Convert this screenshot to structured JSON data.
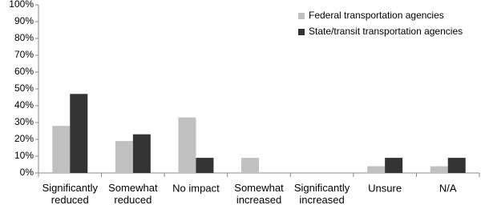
{
  "chart_data": {
    "type": "bar",
    "categories": [
      "Significantly\nreduced",
      "Somewhat\nreduced",
      "No impact",
      "Somewhat\nincreased",
      "Significantly\nincreased",
      "Unsure",
      "N/A"
    ],
    "series": [
      {
        "name": "Federal transportation agencies",
        "color": "#c0c0c0",
        "values": [
          28,
          19,
          33,
          9,
          0,
          4,
          4
        ]
      },
      {
        "name": "State/transit transportation agencies",
        "color": "#333333",
        "values": [
          47,
          23,
          9,
          0,
          0,
          9,
          9
        ]
      }
    ],
    "ylim": [
      0,
      100
    ],
    "yticks": [
      {
        "value": 0,
        "label": "0%"
      },
      {
        "value": 10,
        "label": "10%"
      },
      {
        "value": 20,
        "label": "20%"
      },
      {
        "value": 30,
        "label": "30%"
      },
      {
        "value": 40,
        "label": "40%"
      },
      {
        "value": 50,
        "label": "50%"
      },
      {
        "value": 60,
        "label": "60%"
      },
      {
        "value": 70,
        "label": "70%"
      },
      {
        "value": 80,
        "label": "80%"
      },
      {
        "value": 90,
        "label": "90%"
      },
      {
        "value": 100,
        "label": "100%"
      }
    ],
    "grid": false,
    "legend": "top-right"
  }
}
